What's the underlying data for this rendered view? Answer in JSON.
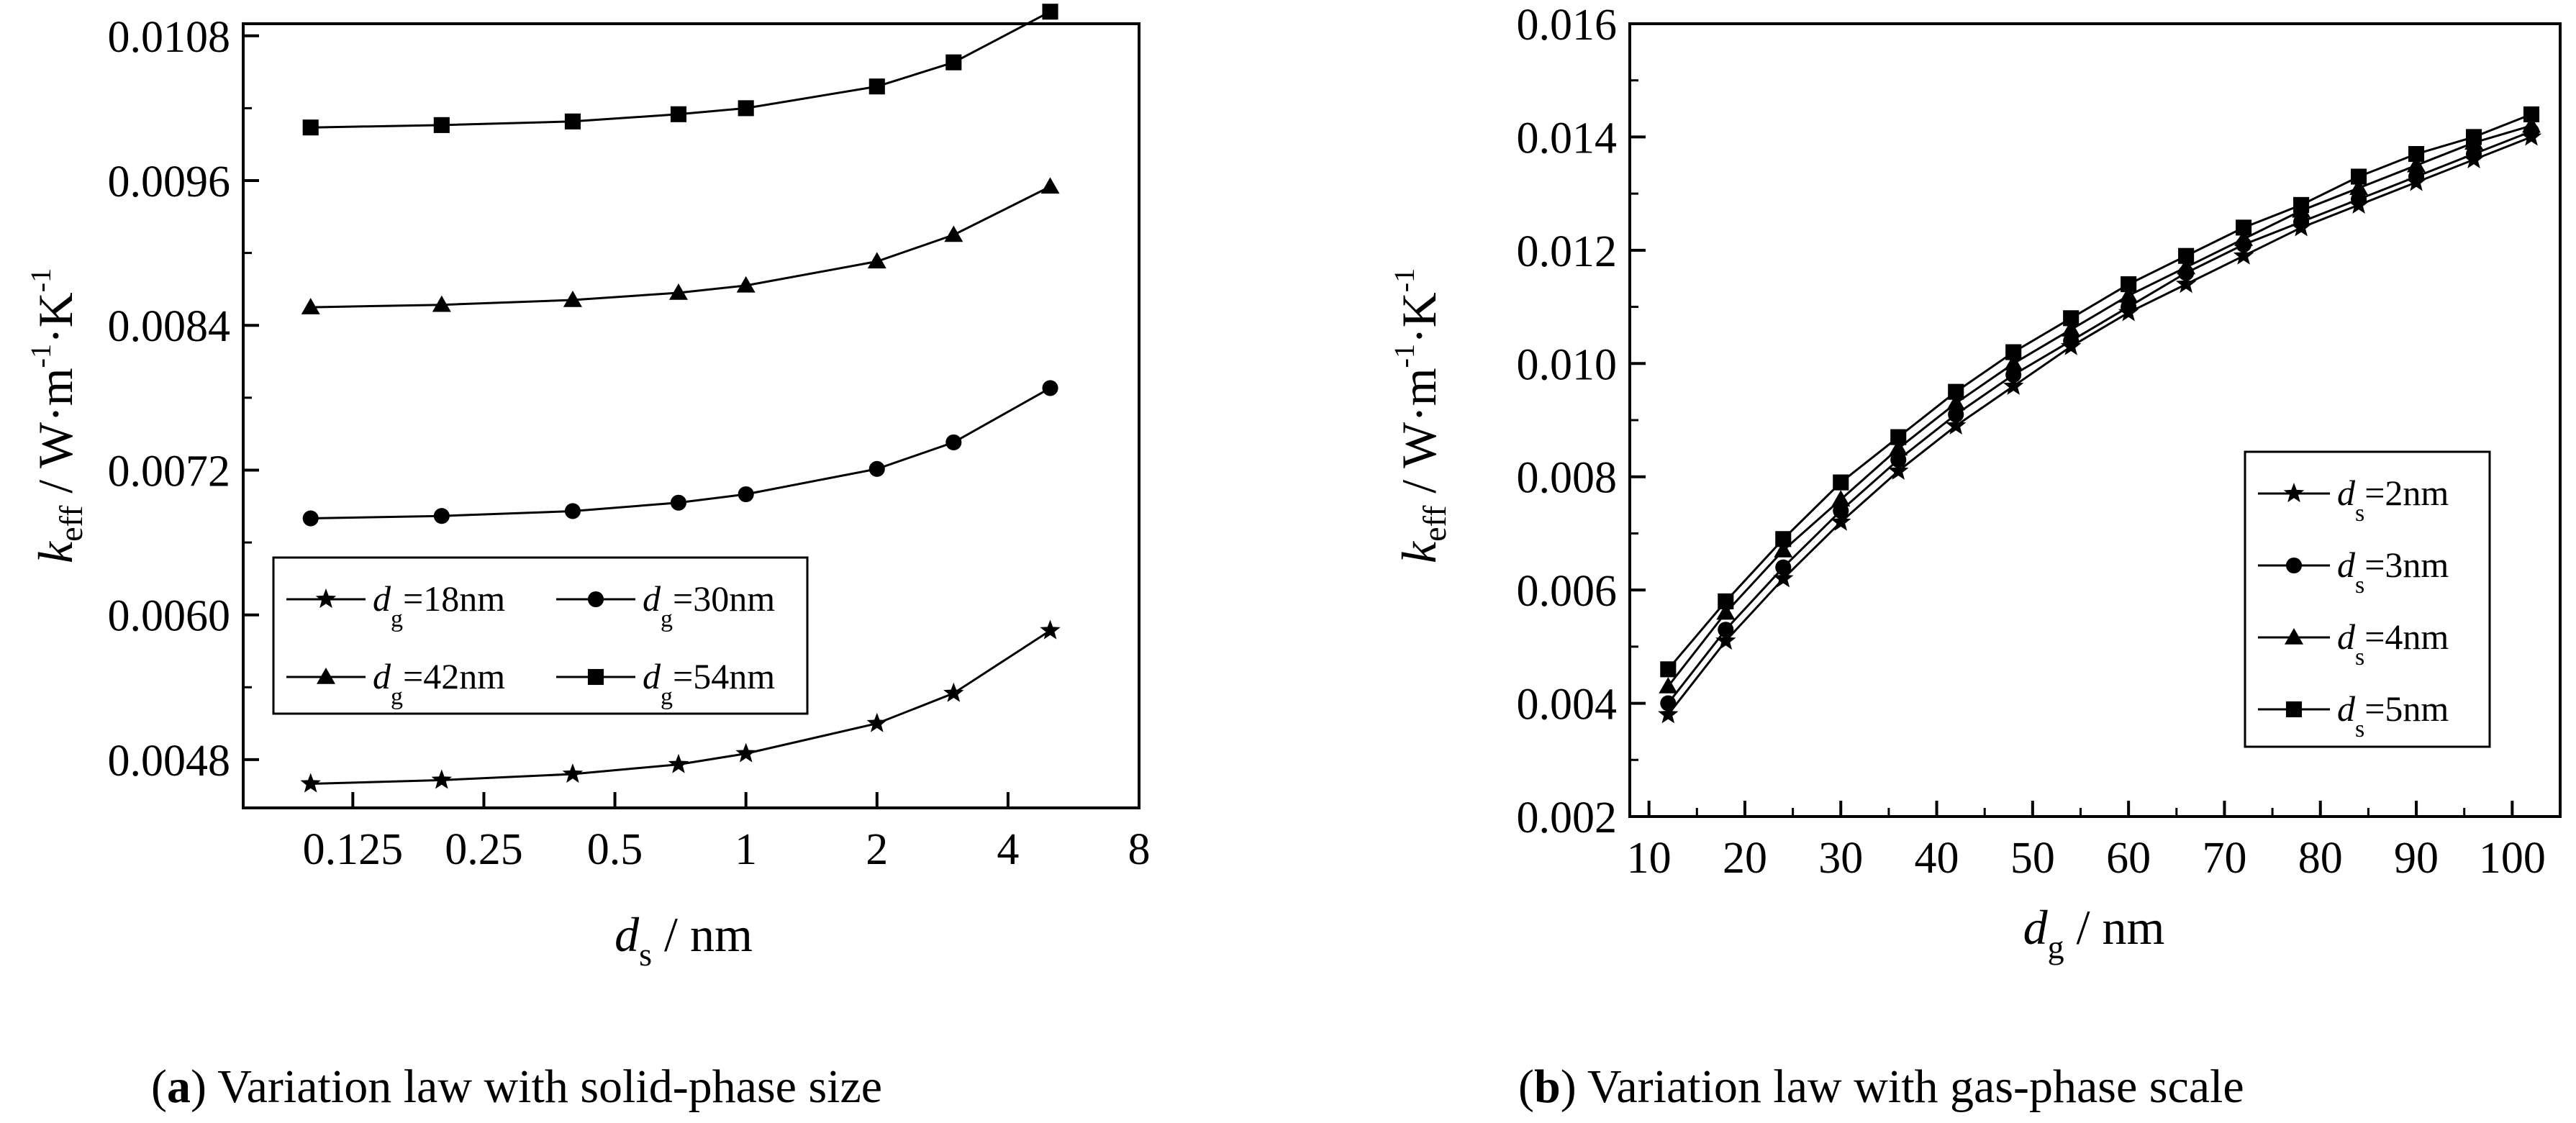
{
  "figure": {
    "captions": [
      {
        "open": "(",
        "letter": "a",
        "close": ")",
        "text": " Variation law with solid-phase size"
      },
      {
        "open": "(",
        "letter": "b",
        "close": ")",
        "text": " Variation law with gas-phase scale"
      }
    ]
  },
  "chart_data": [
    {
      "type": "line",
      "id": "a",
      "x_scale": "log2",
      "x": [
        0.1,
        0.2,
        0.4,
        0.7,
        1,
        2,
        3,
        5
      ],
      "xlim": [
        0.07,
        8
      ],
      "ylim": [
        0.0044,
        0.0109
      ],
      "x_ticks": [
        0.125,
        0.25,
        0.5,
        1,
        2,
        4,
        8
      ],
      "x_tick_labels": [
        "0.125",
        "0.25",
        "0.5",
        "1",
        "2",
        "4",
        "8"
      ],
      "y_ticks": [
        0.0048,
        0.006,
        0.0072,
        0.0084,
        0.0096,
        0.0108
      ],
      "y_tick_labels": [
        "0.0048",
        "0.0060",
        "0.0072",
        "0.0084",
        "0.0096",
        "0.0108"
      ],
      "xlabel": {
        "var": "d",
        "sub": "s",
        "unit": " / nm"
      },
      "ylabel": {
        "var": "k",
        "sub": "eff",
        "unit": "  /  W·m",
        "exp1": "-1",
        "mid": "·K",
        "exp2": "-1"
      },
      "legend": {
        "position": "lower-left",
        "columns": 2
      },
      "series": [
        {
          "name": "dg=18nm",
          "var": "d",
          "sub": "g",
          "rest": "=18nm",
          "marker": "star",
          "values": [
            0.0046,
            0.00463,
            0.00468,
            0.00476,
            0.00485,
            0.0051,
            0.00535,
            0.00587
          ]
        },
        {
          "name": "dg=30nm",
          "var": "d",
          "sub": "g",
          "rest": "=30nm",
          "marker": "circle",
          "values": [
            0.0068,
            0.00682,
            0.00686,
            0.00693,
            0.007,
            0.00721,
            0.00743,
            0.00788
          ]
        },
        {
          "name": "dg=42nm",
          "var": "d",
          "sub": "g",
          "rest": "=42nm",
          "marker": "triangle",
          "values": [
            0.00855,
            0.00857,
            0.00861,
            0.00867,
            0.00873,
            0.00893,
            0.00915,
            0.00955
          ]
        },
        {
          "name": "dg=54nm",
          "var": "d",
          "sub": "g",
          "rest": "=54nm",
          "marker": "square",
          "values": [
            0.01004,
            0.01006,
            0.01009,
            0.01015,
            0.0102,
            0.01038,
            0.01058,
            0.011
          ]
        }
      ]
    },
    {
      "type": "line",
      "id": "b",
      "x_scale": "linear",
      "x": [
        12,
        18,
        24,
        30,
        36,
        42,
        48,
        54,
        60,
        66,
        72,
        78,
        84,
        90,
        96,
        102
      ],
      "xlim": [
        8,
        105
      ],
      "ylim": [
        0.002,
        0.016
      ],
      "x_ticks": [
        10,
        20,
        30,
        40,
        50,
        60,
        70,
        80,
        90,
        100
      ],
      "x_tick_labels": [
        "10",
        "20",
        "30",
        "40",
        "50",
        "60",
        "70",
        "80",
        "90",
        "100"
      ],
      "y_ticks": [
        0.002,
        0.004,
        0.006,
        0.008,
        0.01,
        0.012,
        0.014,
        0.016
      ],
      "y_tick_labels": [
        "0.002",
        "0.004",
        "0.006",
        "0.008",
        "0.010",
        "0.012",
        "0.014",
        "0.016"
      ],
      "xlabel": {
        "var": "d",
        "sub": "g",
        "unit": " / nm"
      },
      "ylabel": {
        "var": "k",
        "sub": "eff",
        "unit": "  /  W·m",
        "exp1": "-1",
        "mid": "·K",
        "exp2": "-1"
      },
      "legend": {
        "position": "center-right",
        "columns": 1
      },
      "series": [
        {
          "name": "ds=2nm",
          "var": "d",
          "sub": "s",
          "rest": "=2nm",
          "marker": "star",
          "values": [
            0.0038,
            0.0051,
            0.0062,
            0.0072,
            0.0081,
            0.0089,
            0.0096,
            0.0103,
            0.0109,
            0.0114,
            0.0119,
            0.0124,
            0.0128,
            0.0132,
            0.0136,
            0.014
          ]
        },
        {
          "name": "ds=3nm",
          "var": "d",
          "sub": "s",
          "rest": "=3nm",
          "marker": "circle",
          "values": [
            0.004,
            0.0053,
            0.0064,
            0.0074,
            0.0083,
            0.0091,
            0.0098,
            0.0104,
            0.011,
            0.0116,
            0.0121,
            0.0125,
            0.0129,
            0.0133,
            0.0137,
            0.0141
          ]
        },
        {
          "name": "ds=4nm",
          "var": "d",
          "sub": "s",
          "rest": "=4nm",
          "marker": "triangle",
          "values": [
            0.0043,
            0.0056,
            0.0067,
            0.0076,
            0.0085,
            0.0093,
            0.01,
            0.0106,
            0.0112,
            0.0117,
            0.0122,
            0.0127,
            0.0131,
            0.0135,
            0.0139,
            0.0142
          ]
        },
        {
          "name": "ds=5nm",
          "var": "d",
          "sub": "s",
          "rest": "=5nm",
          "marker": "square",
          "values": [
            0.0046,
            0.0058,
            0.0069,
            0.0079,
            0.0087,
            0.0095,
            0.0102,
            0.0108,
            0.0114,
            0.0119,
            0.0124,
            0.0128,
            0.0133,
            0.0137,
            0.014,
            0.0144
          ]
        }
      ]
    }
  ]
}
